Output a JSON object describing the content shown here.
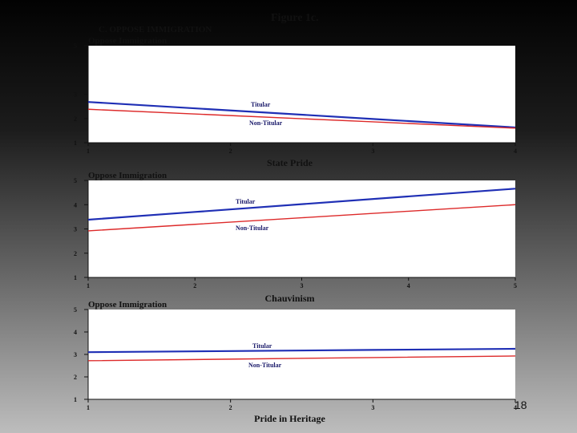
{
  "figure_title": "Figure 1c.",
  "section_title": "C.  OPPOSE IMMIGRATION",
  "page_number": "18",
  "colors": {
    "titular": "#1f2fb5",
    "non_titular": "#dd2a2a",
    "plot_bg": "#ffffff"
  },
  "chart_data": [
    {
      "type": "line",
      "title": "Oppose Immigration",
      "xlabel": "State Pride",
      "ylabel": "",
      "x": [
        1,
        2,
        3,
        4
      ],
      "xlim": [
        1,
        4
      ],
      "ylim": [
        1,
        5
      ],
      "yticks": [
        "1",
        "2",
        "3",
        "4",
        "5"
      ],
      "xticks": [
        "1",
        "2",
        "3",
        "4"
      ],
      "series": [
        {
          "name": "Titular",
          "values": [
            2.68,
            2.33,
            1.98,
            1.63
          ]
        },
        {
          "name": "Non-Titular",
          "values": [
            2.38,
            2.12,
            1.86,
            1.6
          ]
        }
      ]
    },
    {
      "type": "line",
      "title": "Oppose Immigration",
      "xlabel": "Chauvinism",
      "ylabel": "",
      "x": [
        1,
        2,
        3,
        4,
        5
      ],
      "xlim": [
        1,
        5
      ],
      "ylim": [
        1,
        5
      ],
      "yticks": [
        "1",
        "2",
        "3",
        "4",
        "5"
      ],
      "xticks": [
        "1",
        "2",
        "3",
        "4",
        "5"
      ],
      "series": [
        {
          "name": "Titular",
          "values": [
            3.38,
            3.7,
            4.02,
            4.34,
            4.66
          ]
        },
        {
          "name": "Non-Titular",
          "values": [
            2.92,
            3.19,
            3.46,
            3.73,
            4.0
          ]
        }
      ]
    },
    {
      "type": "line",
      "title": "Oppose Immigration",
      "xlabel": "Pride in Heritage",
      "ylabel": "",
      "x": [
        1,
        2,
        3,
        4
      ],
      "xlim": [
        1,
        4
      ],
      "ylim": [
        1,
        5
      ],
      "yticks": [
        "1",
        "2",
        "3",
        "4",
        "5"
      ],
      "xticks": [
        "1",
        "2",
        "3",
        "4"
      ],
      "series": [
        {
          "name": "Titular",
          "values": [
            3.1,
            3.15,
            3.2,
            3.25
          ]
        },
        {
          "name": "Non-Titular",
          "values": [
            2.72,
            2.79,
            2.86,
            2.93
          ]
        }
      ]
    }
  ]
}
